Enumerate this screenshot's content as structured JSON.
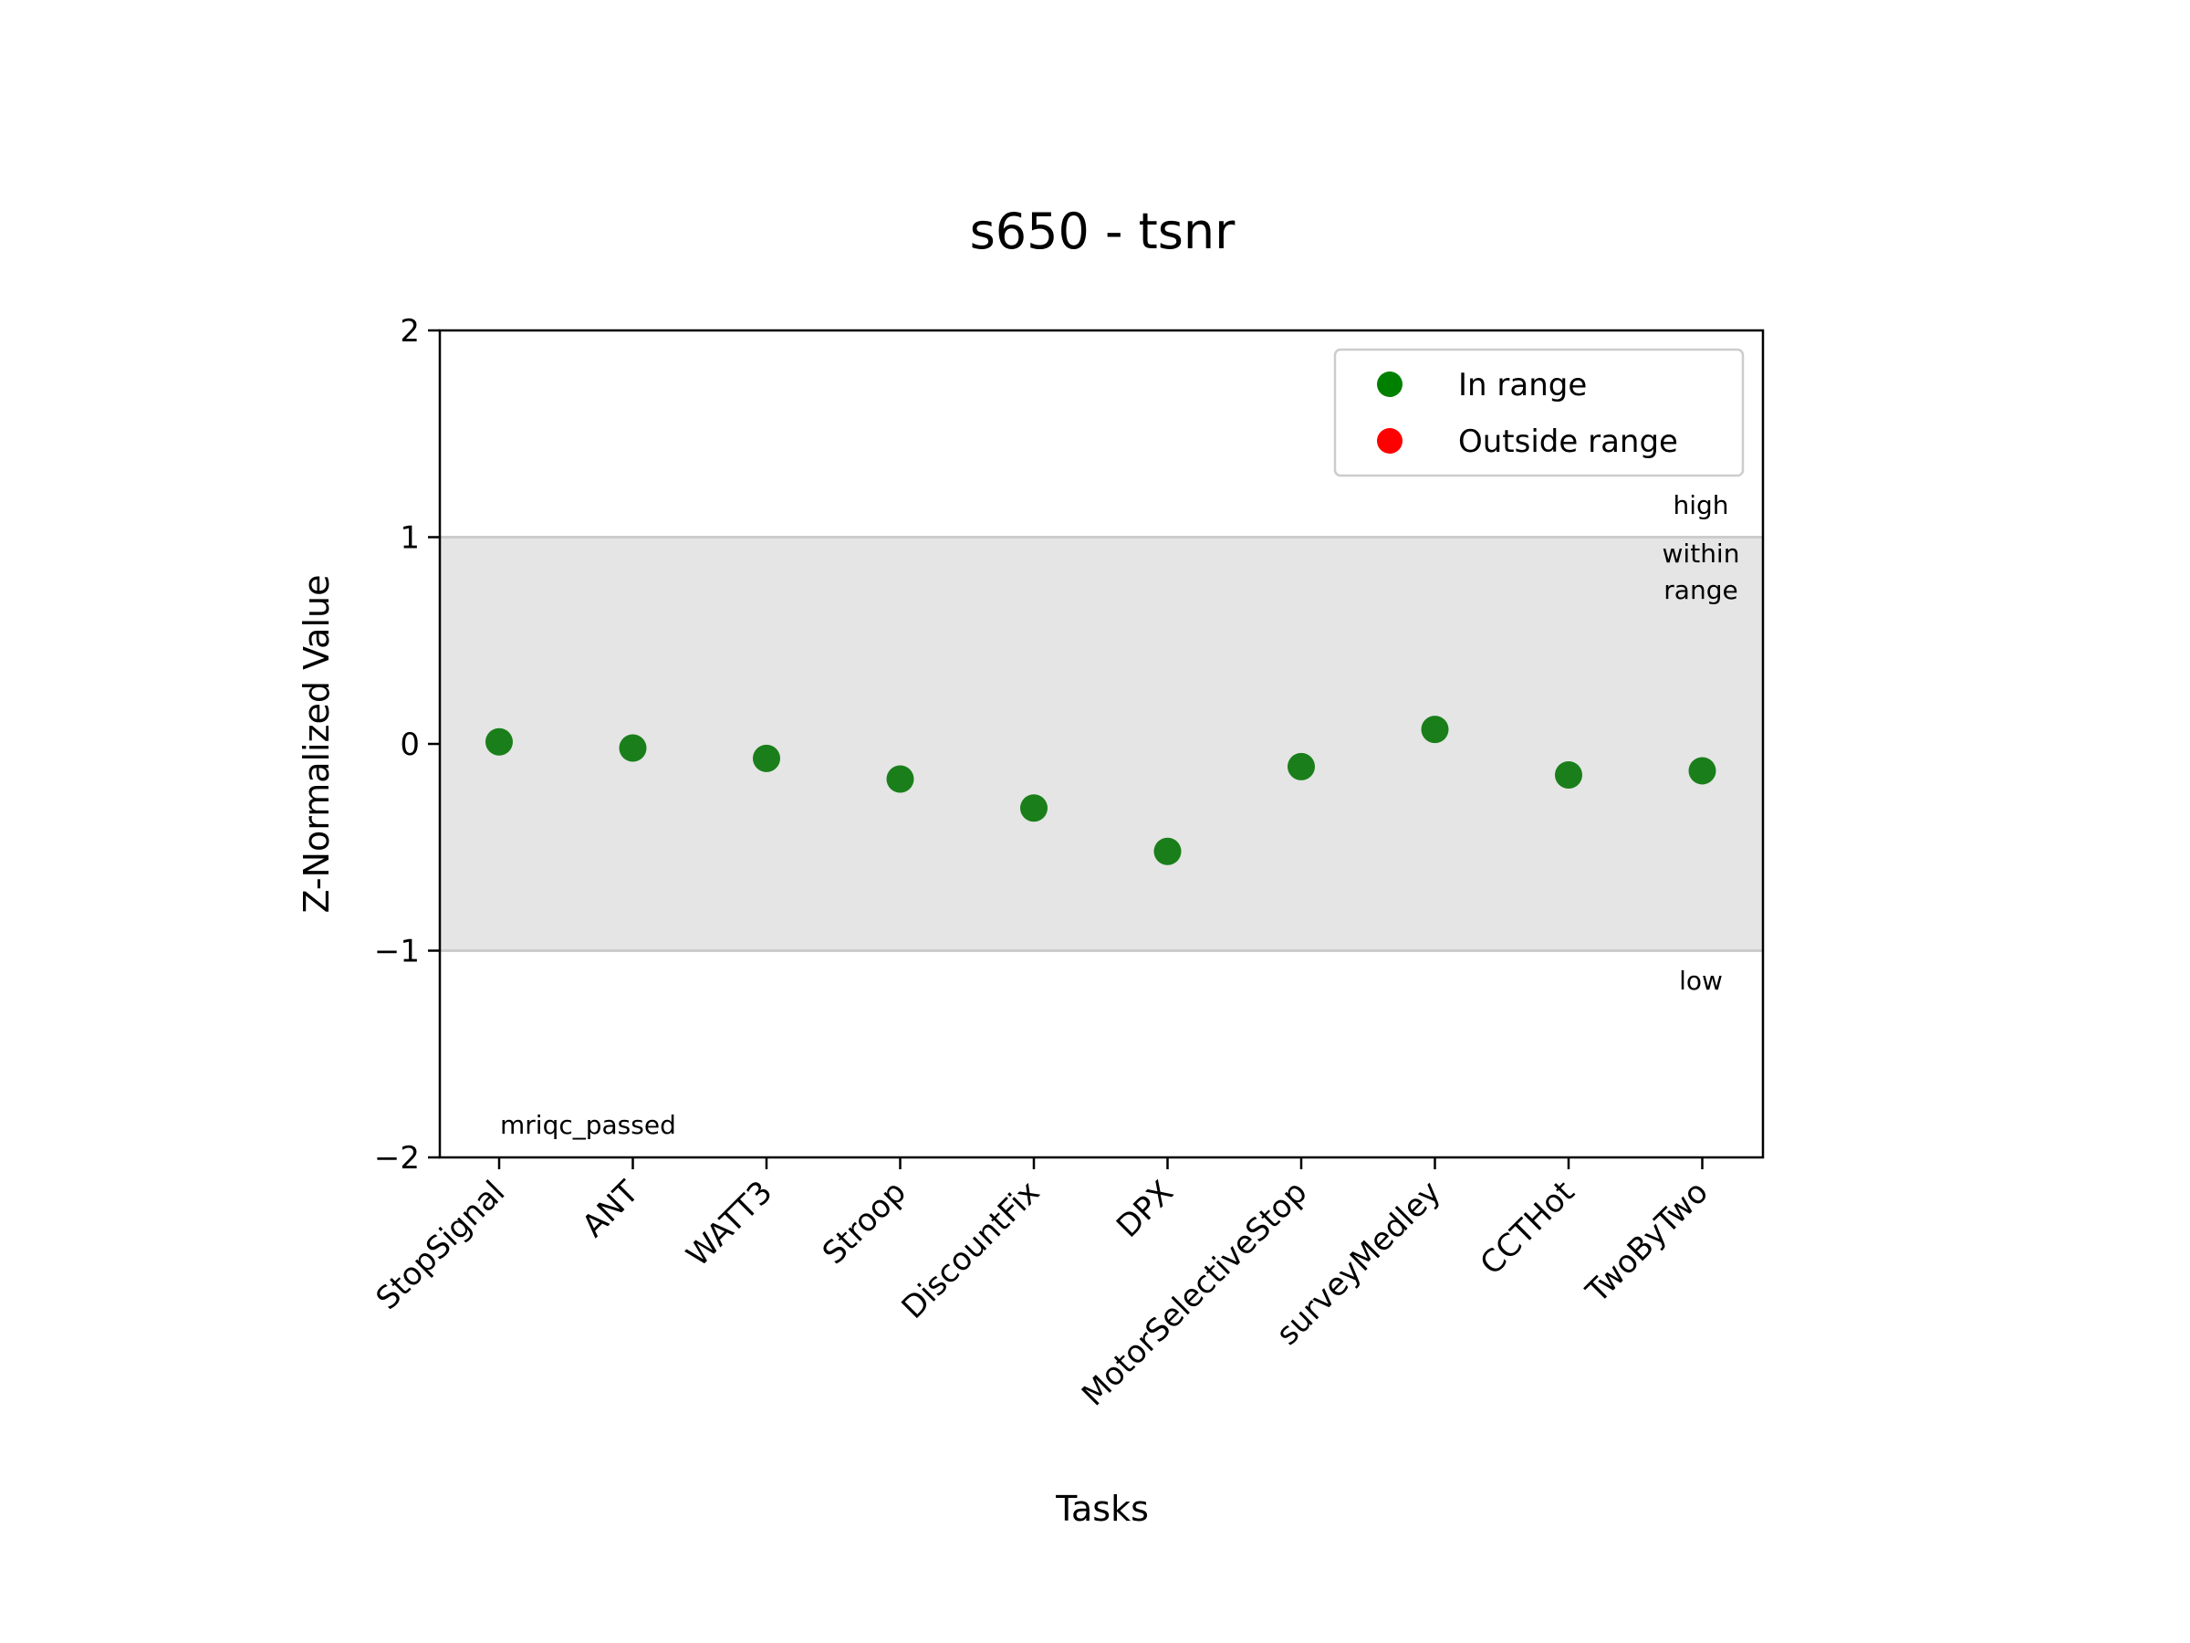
{
  "chart_data": {
    "type": "scatter",
    "title": "s650 - tsnr",
    "xlabel": "Tasks",
    "ylabel": "Z-Normalized Value",
    "categories": [
      "StopSignal",
      "ANT",
      "WATT3",
      "Stroop",
      "DiscountFix",
      "DPX",
      "MotorSelectiveStop",
      "surveyMedley",
      "CCTHot",
      "TwoByTwo"
    ],
    "series": [
      {
        "name": "In range",
        "color": "#1a7f1a",
        "values": [
          0.01,
          -0.02,
          -0.07,
          -0.17,
          -0.31,
          -0.52,
          -0.11,
          0.07,
          -0.15,
          -0.13
        ]
      }
    ],
    "legend": {
      "placement": "top-right",
      "entries": [
        {
          "label": "In range",
          "color": "#008000"
        },
        {
          "label": "Outside range",
          "color": "#ff0000"
        }
      ]
    },
    "ylim": [
      -2,
      2
    ],
    "yticks": [
      -2,
      -1,
      0,
      1,
      2
    ],
    "ytick_labels": [
      "−2",
      "−1",
      "0",
      "1",
      "2"
    ],
    "band": {
      "from": -1,
      "to": 1,
      "color": "#e5e5e5",
      "line_color": "#cccccc"
    },
    "annotations": {
      "high": "high",
      "within_line1": "within",
      "within_line2": "range",
      "low": "low",
      "status": "mriqc_passed"
    },
    "grid": false
  }
}
